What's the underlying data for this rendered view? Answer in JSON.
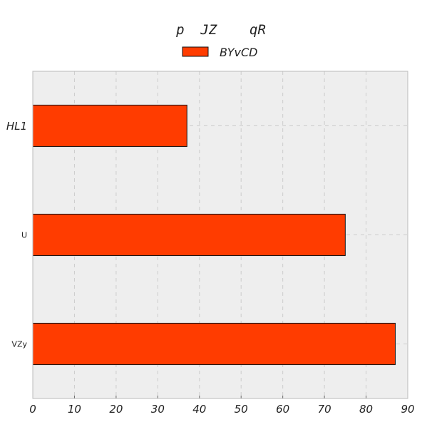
{
  "chart_data": {
    "type": "bar",
    "orientation": "horizontal",
    "title": "p  JZ    qR",
    "categories": [
      "HL1",
      "U",
      "VZy"
    ],
    "series": [
      {
        "name": "BYvCD",
        "values": [
          37,
          75,
          87
        ]
      }
    ],
    "xlim": [
      0,
      90
    ],
    "xticks": [
      0,
      10,
      20,
      30,
      40,
      50,
      60,
      70,
      80,
      90
    ],
    "xlabel": "",
    "ylabel": "",
    "grid": true,
    "legend": "top-center",
    "colors": {
      "bar": "#ff3c00",
      "bar_edge": "#111111",
      "plot_background": "#eeeeee",
      "grid": "#cccccc",
      "axes_edge": "#bbbbbb"
    }
  }
}
